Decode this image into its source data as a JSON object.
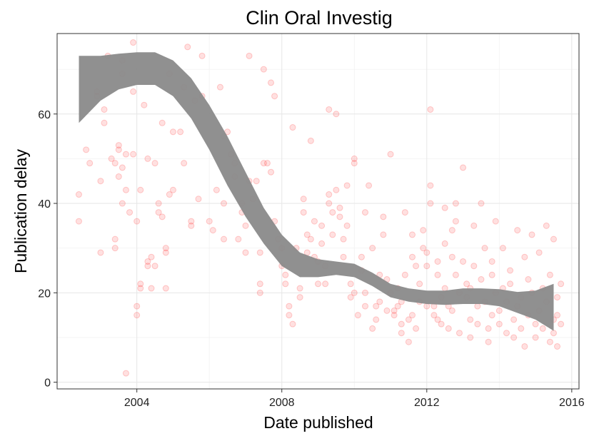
{
  "chart_data": {
    "type": "scatter",
    "title": "Clin Oral Investig",
    "xlabel": "Date published",
    "ylabel": "Publication delay",
    "x_unit": "year",
    "xlim": [
      2001.8,
      2016.2
    ],
    "ylim": [
      -1.5,
      78
    ],
    "x_ticks": [
      2004,
      2008,
      2012,
      2016
    ],
    "y_ticks": [
      0,
      20,
      40,
      60
    ],
    "grid": true,
    "legend": "none",
    "point_color": "#ff0000",
    "point_opacity": 0.12,
    "smooth_band_color": "#8a8a8a",
    "smooth": {
      "x": [
        2002.4,
        2003.0,
        2003.5,
        2004.0,
        2004.5,
        2005.0,
        2005.5,
        2006.0,
        2006.5,
        2007.0,
        2007.5,
        2008.0,
        2008.5,
        2009.0,
        2009.5,
        2010.0,
        2010.5,
        2011.0,
        2011.5,
        2012.0,
        2012.5,
        2013.0,
        2013.5,
        2014.0,
        2014.5,
        2015.0,
        2015.5
      ],
      "upper": [
        73,
        73,
        73.5,
        73.8,
        73.8,
        72,
        68,
        62,
        55,
        47,
        39,
        33,
        29,
        27.5,
        27,
        26.5,
        24.5,
        22,
        21,
        20.5,
        20.5,
        21,
        21,
        20.8,
        20.2,
        20.5,
        22
      ],
      "lower": [
        58,
        63,
        65.5,
        66.5,
        66.5,
        64,
        59,
        52,
        44,
        37,
        31,
        26,
        23.5,
        23.5,
        24,
        23.5,
        21.5,
        19,
        18,
        17.5,
        17.3,
        17.5,
        17.5,
        17,
        15.5,
        14,
        11.5
      ]
    },
    "points": [
      [
        2002.4,
        42
      ],
      [
        2002.4,
        36
      ],
      [
        2002.6,
        52
      ],
      [
        2002.7,
        49
      ],
      [
        2002.9,
        65
      ],
      [
        2002.9,
        64
      ],
      [
        2003.0,
        45
      ],
      [
        2003.0,
        29
      ],
      [
        2003.1,
        58
      ],
      [
        2003.1,
        61
      ],
      [
        2003.2,
        73
      ],
      [
        2003.3,
        50
      ],
      [
        2003.4,
        49
      ],
      [
        2003.4,
        30
      ],
      [
        2003.4,
        32
      ],
      [
        2003.5,
        53
      ],
      [
        2003.5,
        52
      ],
      [
        2003.5,
        46
      ],
      [
        2003.6,
        72
      ],
      [
        2003.6,
        69
      ],
      [
        2003.6,
        48
      ],
      [
        2003.6,
        40
      ],
      [
        2003.7,
        43
      ],
      [
        2003.7,
        51
      ],
      [
        2003.7,
        2
      ],
      [
        2003.8,
        38
      ],
      [
        2003.9,
        76
      ],
      [
        2003.9,
        65
      ],
      [
        2003.9,
        51
      ],
      [
        2004.0,
        36
      ],
      [
        2004.0,
        17
      ],
      [
        2004.0,
        15
      ],
      [
        2004.1,
        43
      ],
      [
        2004.1,
        22
      ],
      [
        2004.1,
        21
      ],
      [
        2004.2,
        62
      ],
      [
        2004.3,
        27
      ],
      [
        2004.3,
        26
      ],
      [
        2004.3,
        50
      ],
      [
        2004.4,
        28
      ],
      [
        2004.4,
        21
      ],
      [
        2004.5,
        49
      ],
      [
        2004.5,
        26
      ],
      [
        2004.6,
        38
      ],
      [
        2004.6,
        40
      ],
      [
        2004.7,
        58
      ],
      [
        2004.7,
        37
      ],
      [
        2004.8,
        30
      ],
      [
        2004.8,
        29
      ],
      [
        2004.8,
        21
      ],
      [
        2004.9,
        69
      ],
      [
        2004.9,
        42
      ],
      [
        2005.0,
        56
      ],
      [
        2005.0,
        43
      ],
      [
        2005.2,
        56
      ],
      [
        2005.3,
        49
      ],
      [
        2005.3,
        66
      ],
      [
        2005.4,
        75
      ],
      [
        2005.5,
        36
      ],
      [
        2005.5,
        35
      ],
      [
        2005.6,
        63
      ],
      [
        2005.7,
        41
      ],
      [
        2005.8,
        73
      ],
      [
        2005.8,
        64
      ],
      [
        2006.0,
        36
      ],
      [
        2006.1,
        34
      ],
      [
        2006.2,
        43
      ],
      [
        2006.3,
        66
      ],
      [
        2006.4,
        55
      ],
      [
        2006.4,
        32
      ],
      [
        2006.4,
        40
      ],
      [
        2006.5,
        56
      ],
      [
        2006.6,
        51
      ],
      [
        2006.7,
        49
      ],
      [
        2006.7,
        46
      ],
      [
        2006.8,
        32
      ],
      [
        2006.9,
        40
      ],
      [
        2006.9,
        38
      ],
      [
        2007.0,
        35
      ],
      [
        2007.0,
        29
      ],
      [
        2007.1,
        73
      ],
      [
        2007.1,
        45
      ],
      [
        2007.2,
        41
      ],
      [
        2007.3,
        45
      ],
      [
        2007.4,
        22
      ],
      [
        2007.4,
        20
      ],
      [
        2007.4,
        29
      ],
      [
        2007.5,
        70
      ],
      [
        2007.5,
        49
      ],
      [
        2007.6,
        49
      ],
      [
        2007.7,
        47
      ],
      [
        2007.7,
        67
      ],
      [
        2007.8,
        64
      ],
      [
        2007.8,
        36
      ],
      [
        2007.9,
        32
      ],
      [
        2008.0,
        30
      ],
      [
        2008.0,
        26
      ],
      [
        2008.1,
        24
      ],
      [
        2008.1,
        22
      ],
      [
        2008.2,
        17
      ],
      [
        2008.2,
        15
      ],
      [
        2008.3,
        13
      ],
      [
        2008.3,
        57
      ],
      [
        2008.4,
        30
      ],
      [
        2008.5,
        21
      ],
      [
        2008.5,
        19
      ],
      [
        2008.6,
        41
      ],
      [
        2008.6,
        38
      ],
      [
        2008.7,
        33
      ],
      [
        2008.7,
        29
      ],
      [
        2008.8,
        54
      ],
      [
        2008.8,
        32
      ],
      [
        2008.9,
        36
      ],
      [
        2008.9,
        28
      ],
      [
        2009.0,
        27
      ],
      [
        2009.0,
        22
      ],
      [
        2009.1,
        35
      ],
      [
        2009.1,
        31
      ],
      [
        2009.2,
        22
      ],
      [
        2009.2,
        26
      ],
      [
        2009.3,
        42
      ],
      [
        2009.3,
        40
      ],
      [
        2009.3,
        61
      ],
      [
        2009.4,
        38
      ],
      [
        2009.4,
        33
      ],
      [
        2009.5,
        60
      ],
      [
        2009.5,
        43
      ],
      [
        2009.6,
        39
      ],
      [
        2009.6,
        37
      ],
      [
        2009.7,
        32
      ],
      [
        2009.7,
        28
      ],
      [
        2009.8,
        44
      ],
      [
        2009.8,
        35
      ],
      [
        2009.9,
        22
      ],
      [
        2009.9,
        19
      ],
      [
        2010.0,
        50
      ],
      [
        2010.0,
        49
      ],
      [
        2010.0,
        20
      ],
      [
        2010.1,
        15
      ],
      [
        2010.2,
        28
      ],
      [
        2010.2,
        25
      ],
      [
        2010.3,
        38
      ],
      [
        2010.3,
        20
      ],
      [
        2010.3,
        17
      ],
      [
        2010.4,
        44
      ],
      [
        2010.5,
        12
      ],
      [
        2010.5,
        30
      ],
      [
        2010.6,
        14
      ],
      [
        2010.6,
        17
      ],
      [
        2010.7,
        24
      ],
      [
        2010.7,
        18
      ],
      [
        2010.8,
        37
      ],
      [
        2010.8,
        33
      ],
      [
        2010.9,
        23
      ],
      [
        2010.9,
        16
      ],
      [
        2011.0,
        51
      ],
      [
        2011.0,
        20
      ],
      [
        2011.1,
        16
      ],
      [
        2011.1,
        15
      ],
      [
        2011.2,
        21
      ],
      [
        2011.2,
        17
      ],
      [
        2011.3,
        18
      ],
      [
        2011.3,
        13
      ],
      [
        2011.3,
        11
      ],
      [
        2011.4,
        38
      ],
      [
        2011.4,
        24
      ],
      [
        2011.5,
        14
      ],
      [
        2011.5,
        9
      ],
      [
        2011.6,
        33
      ],
      [
        2011.6,
        28
      ],
      [
        2011.6,
        15
      ],
      [
        2011.7,
        26
      ],
      [
        2011.7,
        12
      ],
      [
        2011.8,
        18
      ],
      [
        2011.8,
        22
      ],
      [
        2011.9,
        30
      ],
      [
        2011.9,
        34
      ],
      [
        2012.0,
        29
      ],
      [
        2012.0,
        26
      ],
      [
        2012.0,
        17
      ],
      [
        2012.1,
        61
      ],
      [
        2012.1,
        44
      ],
      [
        2012.1,
        40
      ],
      [
        2012.2,
        17
      ],
      [
        2012.2,
        15
      ],
      [
        2012.3,
        14
      ],
      [
        2012.3,
        27
      ],
      [
        2012.3,
        24
      ],
      [
        2012.4,
        13
      ],
      [
        2012.4,
        19
      ],
      [
        2012.5,
        39
      ],
      [
        2012.5,
        31
      ],
      [
        2012.5,
        21
      ],
      [
        2012.6,
        17
      ],
      [
        2012.6,
        12
      ],
      [
        2012.7,
        34
      ],
      [
        2012.7,
        28
      ],
      [
        2012.7,
        16
      ],
      [
        2012.8,
        40
      ],
      [
        2012.8,
        36
      ],
      [
        2012.8,
        24
      ],
      [
        2012.9,
        20
      ],
      [
        2012.9,
        11
      ],
      [
        2013.0,
        48
      ],
      [
        2013.0,
        27
      ],
      [
        2013.1,
        22
      ],
      [
        2013.1,
        19
      ],
      [
        2013.2,
        14
      ],
      [
        2013.2,
        10
      ],
      [
        2013.2,
        21
      ],
      [
        2013.3,
        35
      ],
      [
        2013.3,
        26
      ],
      [
        2013.4,
        17
      ],
      [
        2013.4,
        13
      ],
      [
        2013.5,
        40
      ],
      [
        2013.5,
        23
      ],
      [
        2013.6,
        30
      ],
      [
        2013.6,
        18
      ],
      [
        2013.7,
        12
      ],
      [
        2013.7,
        9
      ],
      [
        2013.8,
        27
      ],
      [
        2013.8,
        24
      ],
      [
        2013.8,
        15
      ],
      [
        2013.9,
        36
      ],
      [
        2013.9,
        20
      ],
      [
        2014.0,
        16
      ],
      [
        2014.0,
        13
      ],
      [
        2014.1,
        30
      ],
      [
        2014.1,
        21
      ],
      [
        2014.2,
        18
      ],
      [
        2014.2,
        11
      ],
      [
        2014.3,
        25
      ],
      [
        2014.3,
        22
      ],
      [
        2014.4,
        14
      ],
      [
        2014.4,
        10
      ],
      [
        2014.5,
        34
      ],
      [
        2014.5,
        17
      ],
      [
        2014.6,
        19
      ],
      [
        2014.6,
        12
      ],
      [
        2014.7,
        8
      ],
      [
        2014.7,
        28
      ],
      [
        2014.8,
        23
      ],
      [
        2014.8,
        15
      ],
      [
        2014.9,
        33
      ],
      [
        2014.9,
        20
      ],
      [
        2015.0,
        13
      ],
      [
        2015.0,
        10
      ],
      [
        2015.1,
        29
      ],
      [
        2015.1,
        16
      ],
      [
        2015.2,
        21
      ],
      [
        2015.2,
        12
      ],
      [
        2015.3,
        35
      ],
      [
        2015.3,
        18
      ],
      [
        2015.4,
        9
      ],
      [
        2015.4,
        24
      ],
      [
        2015.5,
        14
      ],
      [
        2015.5,
        11
      ],
      [
        2015.5,
        32
      ],
      [
        2015.6,
        19
      ],
      [
        2015.6,
        15
      ],
      [
        2015.6,
        8
      ],
      [
        2015.7,
        22
      ],
      [
        2015.7,
        13
      ]
    ]
  }
}
